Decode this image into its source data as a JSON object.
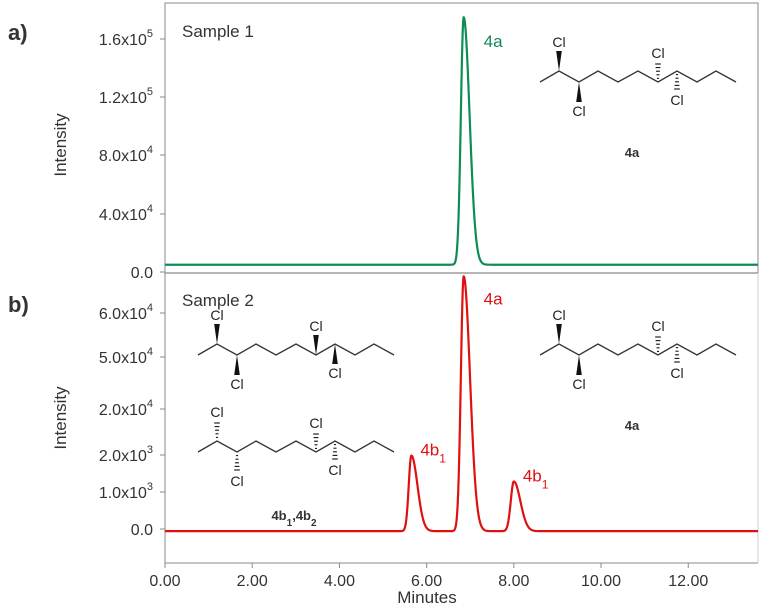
{
  "figure": {
    "x_axis_label": "Minutes",
    "x_tick_labels": [
      "0.00",
      "2.00",
      "4.00",
      "6.00",
      "8.00",
      "10.00",
      "12.00"
    ],
    "colors": {
      "green": "#0e8c55",
      "red": "#e01010",
      "axis": "#666666",
      "text": "#333333"
    }
  },
  "chart_data": [
    {
      "type": "line",
      "panel_label": "a)",
      "sample_label": "Sample 1",
      "ylabel": "Intensity",
      "y_tick_labels": [
        {
          "mant": "0.0",
          "exp": ""
        },
        {
          "mant": "4.0x10",
          "exp": "4"
        },
        {
          "mant": "8.0x10",
          "exp": "4"
        },
        {
          "mant": "1.2x10",
          "exp": "5"
        },
        {
          "mant": "1.6x10",
          "exp": "5"
        }
      ],
      "y_tick_values": [
        0,
        40000,
        80000,
        120000,
        160000
      ],
      "ylim": [
        0,
        175000
      ],
      "xlim": [
        0,
        13.6
      ],
      "baseline": 5000,
      "series": [
        {
          "color": "#0e8c55",
          "peaks": [
            {
              "x": 6.85,
              "height": 170000,
              "sigma": 0.065,
              "tail": 0.07,
              "label": "4a",
              "sub": ""
            }
          ]
        }
      ],
      "structures": [
        {
          "label": "4a",
          "sub": ""
        }
      ]
    },
    {
      "type": "line",
      "panel_label": "b)",
      "sample_label": "Sample 2",
      "ylabel": "Intensity",
      "y_tick_labels": [
        {
          "mant": "0.0",
          "exp": ""
        },
        {
          "mant": "1.0x10",
          "exp": "3"
        },
        {
          "mant": "2.0x10",
          "exp": "3"
        },
        {
          "mant": "2.0x10",
          "exp": "4"
        },
        {
          "mant": "5.0x10",
          "exp": "4"
        },
        {
          "mant": "6.0x10",
          "exp": "4"
        }
      ],
      "y_tick_positions": [
        0,
        1,
        2,
        3,
        4,
        5
      ],
      "ylim": [
        -0.2,
        6.4
      ],
      "xlim": [
        0,
        13.6
      ],
      "baseline": -0.05,
      "series": [
        {
          "color": "#e01010",
          "peaks": [
            {
              "x": 5.65,
              "height": 1.75,
              "sigma": 0.06,
              "tail": 0.08,
              "label": "4b",
              "sub": "1"
            },
            {
              "x": 6.85,
              "height": 5.9,
              "sigma": 0.065,
              "tail": 0.08,
              "label": "4a",
              "sub": ""
            },
            {
              "x": 8.0,
              "height": 1.15,
              "sigma": 0.07,
              "tail": 0.08,
              "label": "4b",
              "sub": "1"
            }
          ]
        }
      ],
      "structures": [
        {
          "label": "4b",
          "sub": "1"
        },
        {
          "label": "4a",
          "sub": ""
        }
      ],
      "structure_pair_label": {
        "a": "4b",
        "a_sub": "1",
        "sep": ",",
        "b": "4b",
        "b_sub": "2"
      }
    }
  ],
  "molecule": {
    "atom_label": "Cl"
  }
}
